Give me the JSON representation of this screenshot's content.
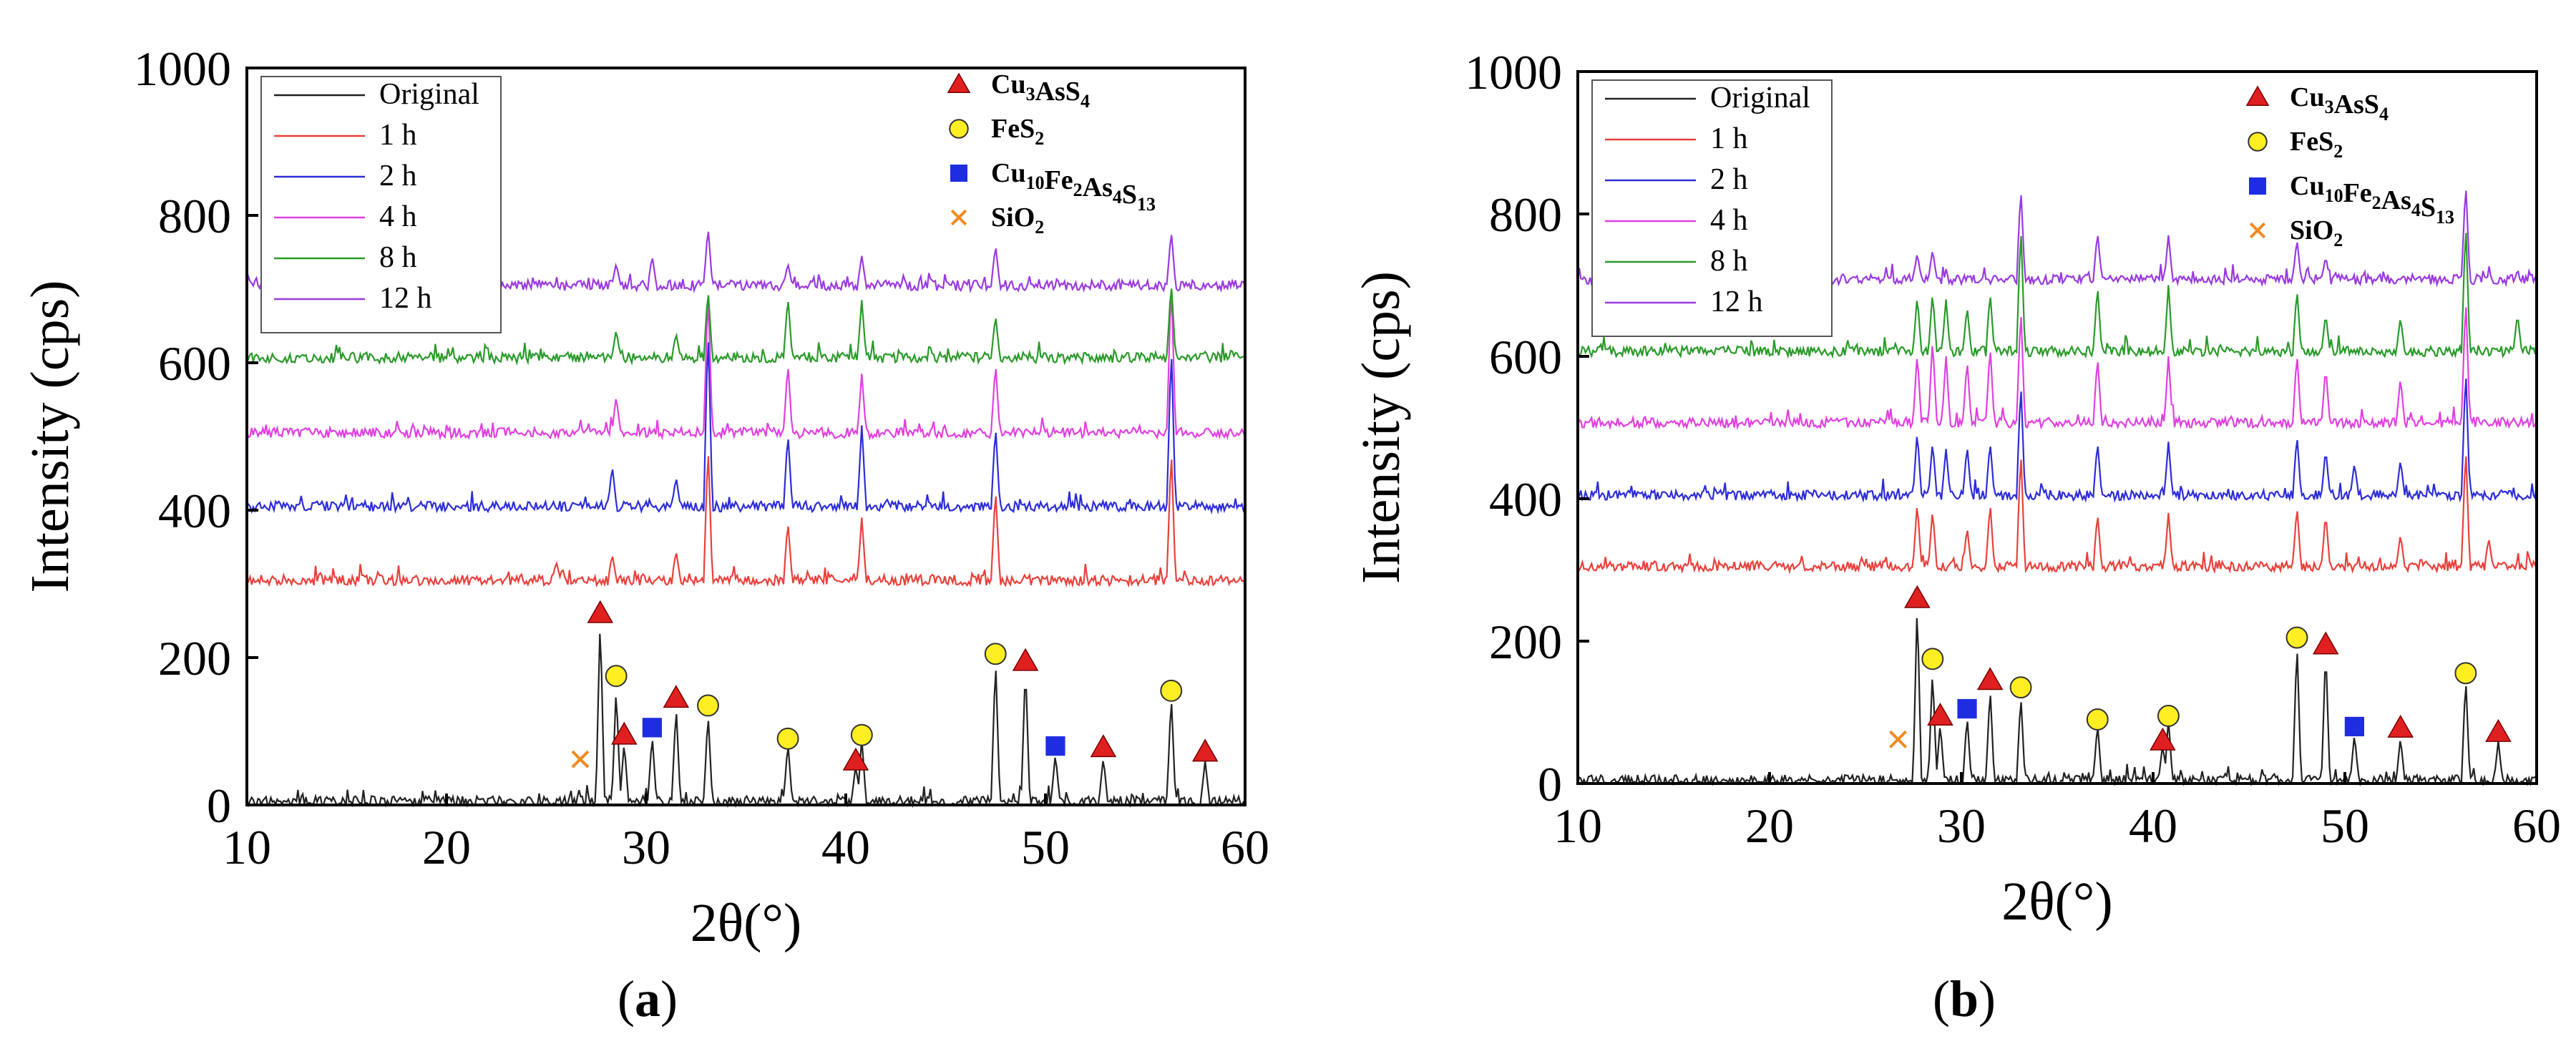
{
  "figure": {
    "panels": [
      {
        "label": "(a)",
        "label_letter": "a",
        "xlabel": "2θ(°)",
        "ylabel": "Intensity (cps)",
        "line_legend": [
          "Original",
          "1 h",
          "2 h",
          "4 h",
          "8 h",
          "12 h"
        ],
        "marker_legend": [
          {
            "formula": "Cu3AsS4",
            "marker": "triangle",
            "color": "#e02020"
          },
          {
            "formula": "FeS2",
            "marker": "circle",
            "color": "#ffee22"
          },
          {
            "formula": "Cu10Fe2As4S13",
            "marker": "square",
            "color": "#1f2de0"
          },
          {
            "formula": "SiO2",
            "marker": "cross",
            "color": "#f08a20"
          }
        ]
      },
      {
        "label": "(b)",
        "label_letter": "b",
        "xlabel": "2θ(°)",
        "ylabel": "Intensity (cps)",
        "line_legend": [
          "Original",
          "1 h",
          "2 h",
          "4 h",
          "8 h",
          "12 h"
        ],
        "marker_legend": [
          {
            "formula": "Cu3AsS4",
            "marker": "triangle",
            "color": "#e02020"
          },
          {
            "formula": "FeS2",
            "marker": "circle",
            "color": "#ffee22"
          },
          {
            "formula": "Cu10Fe2As4S13",
            "marker": "square",
            "color": "#1f2de0"
          },
          {
            "formula": "SiO2",
            "marker": "cross",
            "color": "#f08a20"
          }
        ]
      }
    ]
  },
  "chart_data": [
    {
      "type": "line",
      "title": "",
      "panel_label": "(a)",
      "xlabel": "2θ(°)",
      "ylabel": "Intensity (cps)",
      "xlim": [
        10,
        60
      ],
      "ylim": [
        0,
        1000
      ],
      "xticks": [
        10,
        20,
        30,
        40,
        50,
        60
      ],
      "yticks": [
        0,
        200,
        400,
        600,
        800,
        1000
      ],
      "legend_position": "top-left",
      "series": [
        {
          "name": "Original",
          "color": "#222222",
          "baseline": 5,
          "peaks": [
            [
              27.7,
              255
            ],
            [
              28.5,
              160
            ],
            [
              28.9,
              85
            ],
            [
              30.3,
              95
            ],
            [
              31.5,
              135
            ],
            [
              33.1,
              125
            ],
            [
              37.1,
              85
            ],
            [
              40.5,
              55
            ],
            [
              40.8,
              90
            ],
            [
              47.5,
              200
            ],
            [
              49.0,
              190
            ],
            [
              50.5,
              70
            ],
            [
              52.9,
              65
            ],
            [
              56.3,
              150
            ],
            [
              58.0,
              60
            ]
          ]
        },
        {
          "name": "1 h",
          "color": "#e8413c",
          "baseline": 305,
          "peaks": [
            [
              33.1,
              490
            ],
            [
              37.1,
              385
            ],
            [
              40.8,
              390
            ],
            [
              47.5,
              430
            ],
            [
              56.3,
              485
            ],
            [
              28.3,
              340
            ],
            [
              31.5,
              345
            ],
            [
              25.5,
              330
            ]
          ]
        },
        {
          "name": "2 h",
          "color": "#2d2dd8",
          "baseline": 405,
          "peaks": [
            [
              33.1,
              650
            ],
            [
              37.1,
              505
            ],
            [
              40.8,
              515
            ],
            [
              47.5,
              515
            ],
            [
              56.3,
              625
            ],
            [
              28.3,
              460
            ],
            [
              31.5,
              445
            ]
          ]
        },
        {
          "name": "4 h",
          "color": "#e040e0",
          "baseline": 505,
          "peaks": [
            [
              33.1,
              700
            ],
            [
              37.1,
              600
            ],
            [
              40.8,
              585
            ],
            [
              47.5,
              600
            ],
            [
              56.3,
              715
            ],
            [
              28.5,
              555
            ]
          ]
        },
        {
          "name": "8 h",
          "color": "#2a9a2a",
          "baseline": 607,
          "peaks": [
            [
              33.1,
              700
            ],
            [
              37.1,
              690
            ],
            [
              40.8,
              685
            ],
            [
              47.5,
              665
            ],
            [
              56.3,
              710
            ],
            [
              28.5,
              645
            ],
            [
              31.5,
              640
            ]
          ]
        },
        {
          "name": "12 h",
          "color": "#9a3ae0",
          "baseline": 705,
          "peaks": [
            [
              33.1,
              785
            ],
            [
              37.1,
              735
            ],
            [
              40.8,
              745
            ],
            [
              47.5,
              760
            ],
            [
              56.3,
              780
            ],
            [
              28.5,
              735
            ],
            [
              30.3,
              745
            ]
          ]
        }
      ],
      "markers": [
        {
          "phase": "Cu3AsS4",
          "positions": [
            [
              27.7,
              260
            ],
            [
              28.9,
              95
            ],
            [
              31.5,
              145
            ],
            [
              40.5,
              60
            ],
            [
              49.0,
              195
            ],
            [
              52.9,
              78
            ],
            [
              58.0,
              72
            ]
          ]
        },
        {
          "phase": "FeS2",
          "positions": [
            [
              28.5,
              175
            ],
            [
              33.1,
              135
            ],
            [
              37.1,
              90
            ],
            [
              40.8,
              95
            ],
            [
              47.5,
              205
            ],
            [
              56.3,
              155
            ]
          ]
        },
        {
          "phase": "Cu10Fe2As4S13",
          "positions": [
            [
              30.3,
              105
            ],
            [
              50.5,
              80
            ]
          ]
        },
        {
          "phase": "SiO2",
          "positions": [
            [
              26.7,
              62
            ]
          ]
        }
      ]
    },
    {
      "type": "line",
      "title": "",
      "panel_label": "(b)",
      "xlabel": "2θ(°)",
      "ylabel": "Intensity (cps)",
      "xlim": [
        10,
        60
      ],
      "ylim": [
        0,
        1000
      ],
      "xticks": [
        10,
        20,
        30,
        40,
        50,
        60
      ],
      "yticks": [
        0,
        200,
        400,
        600,
        800,
        1000
      ],
      "legend_position": "top-left",
      "series": [
        {
          "name": "Original",
          "color": "#222222",
          "baseline": 5,
          "peaks": [
            [
              27.7,
              255
            ],
            [
              28.5,
              160
            ],
            [
              28.9,
              85
            ],
            [
              30.3,
              95
            ],
            [
              31.5,
              135
            ],
            [
              33.1,
              125
            ],
            [
              37.1,
              85
            ],
            [
              40.5,
              55
            ],
            [
              40.8,
              90
            ],
            [
              47.5,
              200
            ],
            [
              49.0,
              190
            ],
            [
              50.5,
              70
            ],
            [
              52.9,
              65
            ],
            [
              56.3,
              150
            ],
            [
              58.0,
              60
            ]
          ]
        },
        {
          "name": "1 h",
          "color": "#e8413c",
          "baseline": 305,
          "peaks": [
            [
              27.7,
              395
            ],
            [
              28.5,
              385
            ],
            [
              30.3,
              360
            ],
            [
              31.5,
              395
            ],
            [
              33.1,
              470
            ],
            [
              37.1,
              380
            ],
            [
              40.8,
              380
            ],
            [
              47.5,
              390
            ],
            [
              49.0,
              380
            ],
            [
              52.9,
              350
            ],
            [
              56.3,
              475
            ],
            [
              57.5,
              345
            ]
          ]
        },
        {
          "name": "2 h",
          "color": "#2d2dd8",
          "baseline": 405,
          "peaks": [
            [
              27.7,
              495
            ],
            [
              28.5,
              480
            ],
            [
              29.2,
              470
            ],
            [
              30.3,
              475
            ],
            [
              31.5,
              480
            ],
            [
              33.1,
              565
            ],
            [
              37.1,
              480
            ],
            [
              40.8,
              480
            ],
            [
              47.5,
              490
            ],
            [
              49.0,
              470
            ],
            [
              50.5,
              450
            ],
            [
              52.9,
              455
            ],
            [
              56.3,
              585
            ]
          ]
        },
        {
          "name": "4 h",
          "color": "#e040e0",
          "baseline": 507,
          "peaks": [
            [
              27.7,
              605
            ],
            [
              28.5,
              625
            ],
            [
              29.2,
              600
            ],
            [
              30.3,
              595
            ],
            [
              31.5,
              615
            ],
            [
              33.1,
              670
            ],
            [
              37.1,
              600
            ],
            [
              40.8,
              600
            ],
            [
              47.5,
              605
            ],
            [
              49.0,
              585
            ],
            [
              52.9,
              570
            ],
            [
              56.3,
              685
            ]
          ]
        },
        {
          "name": "8 h",
          "color": "#2a9a2a",
          "baseline": 607,
          "peaks": [
            [
              27.7,
              685
            ],
            [
              28.5,
              690
            ],
            [
              29.2,
              680
            ],
            [
              30.3,
              670
            ],
            [
              31.5,
              690
            ],
            [
              33.1,
              785
            ],
            [
              37.1,
              700
            ],
            [
              40.8,
              700
            ],
            [
              47.5,
              695
            ],
            [
              49.0,
              660
            ],
            [
              52.9,
              655
            ],
            [
              56.3,
              790
            ],
            [
              59.0,
              660
            ]
          ]
        },
        {
          "name": "12 h",
          "color": "#9a3ae0",
          "baseline": 708,
          "peaks": [
            [
              27.7,
              745
            ],
            [
              28.5,
              750
            ],
            [
              33.1,
              838
            ],
            [
              37.1,
              775
            ],
            [
              40.8,
              770
            ],
            [
              47.5,
              765
            ],
            [
              49.0,
              740
            ],
            [
              56.3,
              845
            ]
          ]
        }
      ],
      "markers": [
        {
          "phase": "Cu3AsS4",
          "positions": [
            [
              27.7,
              260
            ],
            [
              28.9,
              95
            ],
            [
              31.5,
              145
            ],
            [
              40.5,
              60
            ],
            [
              49.0,
              195
            ],
            [
              52.9,
              78
            ],
            [
              58.0,
              72
            ]
          ]
        },
        {
          "phase": "FeS2",
          "positions": [
            [
              28.5,
              175
            ],
            [
              33.1,
              135
            ],
            [
              37.1,
              90
            ],
            [
              40.8,
              95
            ],
            [
              47.5,
              205
            ],
            [
              56.3,
              155
            ]
          ]
        },
        {
          "phase": "Cu10Fe2As4S13",
          "positions": [
            [
              30.3,
              105
            ],
            [
              50.5,
              80
            ]
          ]
        },
        {
          "phase": "SiO2",
          "positions": [
            [
              26.7,
              62
            ]
          ]
        }
      ]
    }
  ]
}
